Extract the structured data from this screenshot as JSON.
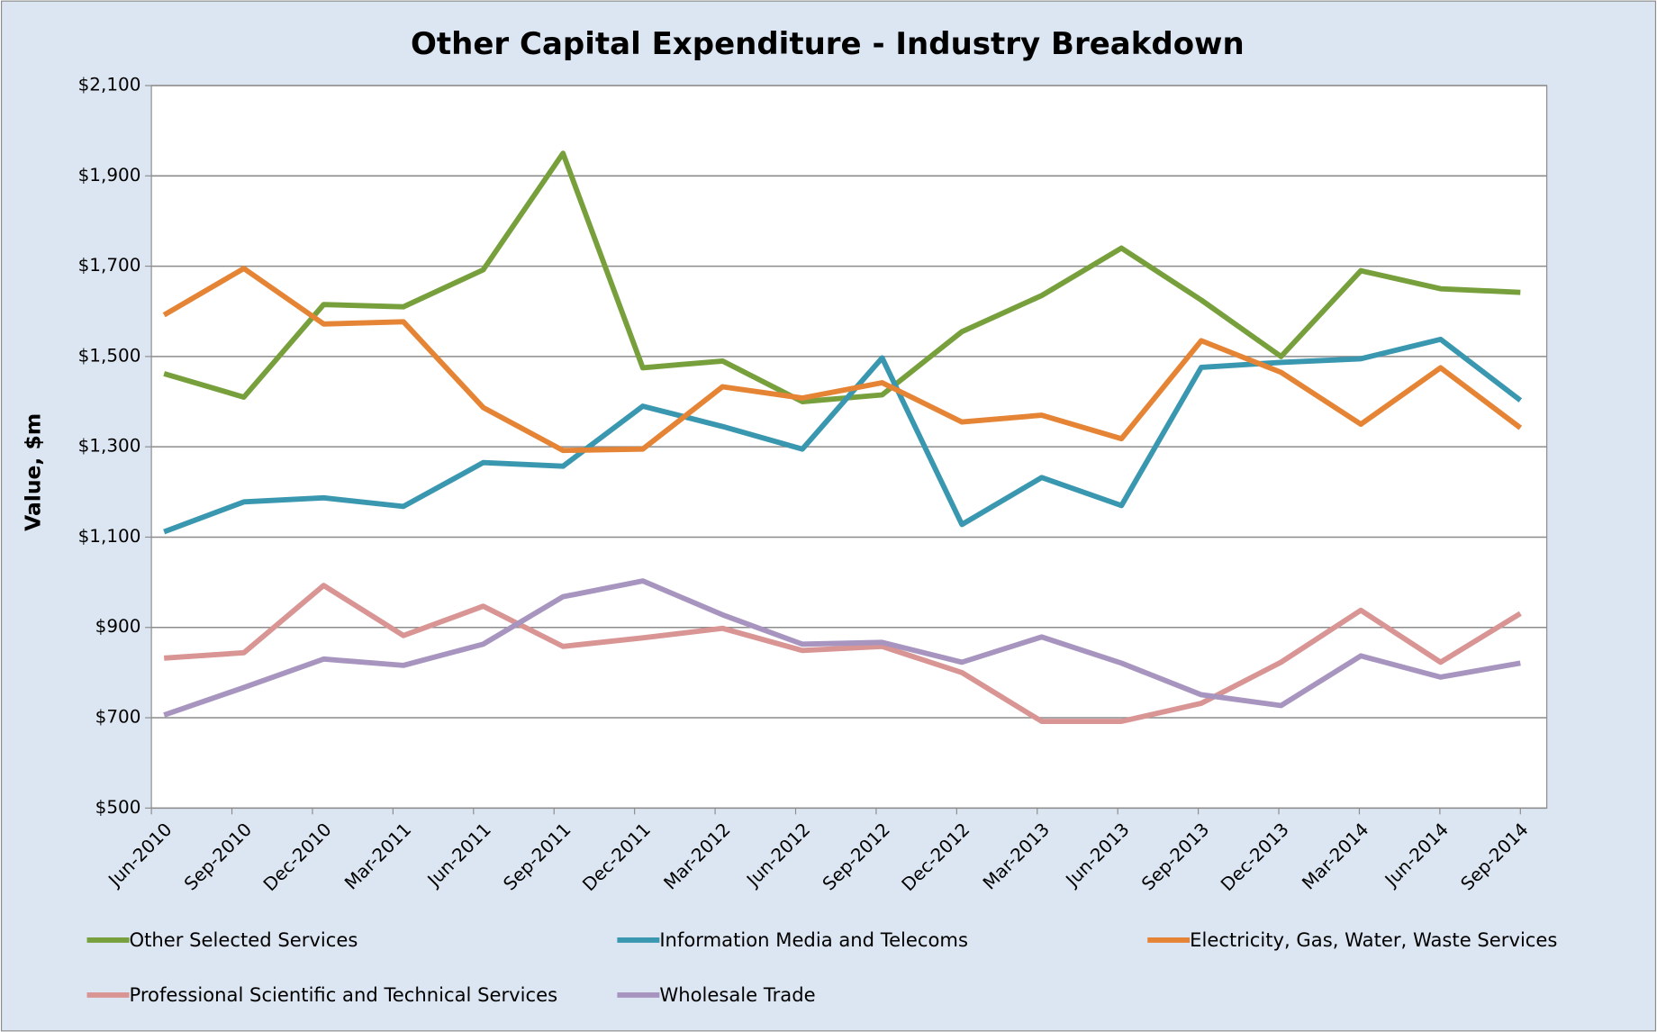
{
  "chart_data": {
    "type": "line",
    "title": "Other Capital Expenditure - Industry Breakdown",
    "y_label": "Value, $m",
    "categories": [
      "Jun-2010",
      "Sep-2010",
      "Dec-2010",
      "Mar-2011",
      "Jun-2011",
      "Sep-2011",
      "Dec-2011",
      "Mar-2012",
      "Jun-2012",
      "Sep-2012",
      "Dec-2012",
      "Mar-2013",
      "Jun-2013",
      "Sep-2013",
      "Dec-2013",
      "Mar-2014",
      "Jun-2014",
      "Sep-2014"
    ],
    "series": [
      {
        "name": "Other Selected Services",
        "color": "#77a03c",
        "values": [
          1462,
          1410,
          1615,
          1610,
          1692,
          1950,
          1475,
          1490,
          1400,
          1415,
          1555,
          1635,
          1740,
          1625,
          1500,
          1690,
          1650,
          1642
        ]
      },
      {
        "name": "Information Media and Telecoms",
        "color": "#3a97b0",
        "values": [
          1112,
          1178,
          1187,
          1168,
          1265,
          1257,
          1390,
          1345,
          1295,
          1497,
          1128,
          1232,
          1170,
          1476,
          1487,
          1495,
          1538,
          1403
        ]
      },
      {
        "name": "Electricity, Gas, Water, Waste Services",
        "color": "#e58435",
        "values": [
          1592,
          1695,
          1572,
          1577,
          1387,
          1292,
          1295,
          1433,
          1408,
          1442,
          1355,
          1370,
          1318,
          1535,
          1465,
          1350,
          1475,
          1342
        ]
      },
      {
        "name": "Professional Scientific and Technical Services",
        "color": "#d99494",
        "values": [
          832,
          844,
          993,
          882,
          947,
          858,
          877,
          898,
          849,
          858,
          800,
          692,
          692,
          732,
          823,
          938,
          823,
          931
        ]
      },
      {
        "name": "Wholesale Trade",
        "color": "#a795c0",
        "values": [
          706,
          767,
          830,
          816,
          863,
          968,
          1003,
          928,
          863,
          867,
          823,
          879,
          821,
          751,
          727,
          837,
          790,
          821
        ]
      }
    ],
    "ylim": [
      500,
      2100
    ],
    "yticks": [
      {
        "value": 500,
        "label": "$500"
      },
      {
        "value": 700,
        "label": "$700"
      },
      {
        "value": 900,
        "label": "$900"
      },
      {
        "value": 1100,
        "label": "$1,100"
      },
      {
        "value": 1300,
        "label": "$1,300"
      },
      {
        "value": 1500,
        "label": "$1,500"
      },
      {
        "value": 1700,
        "label": "$1,700"
      },
      {
        "value": 1900,
        "label": "$1,900"
      },
      {
        "value": 2100,
        "label": "$2,100"
      }
    ],
    "grid": true
  }
}
